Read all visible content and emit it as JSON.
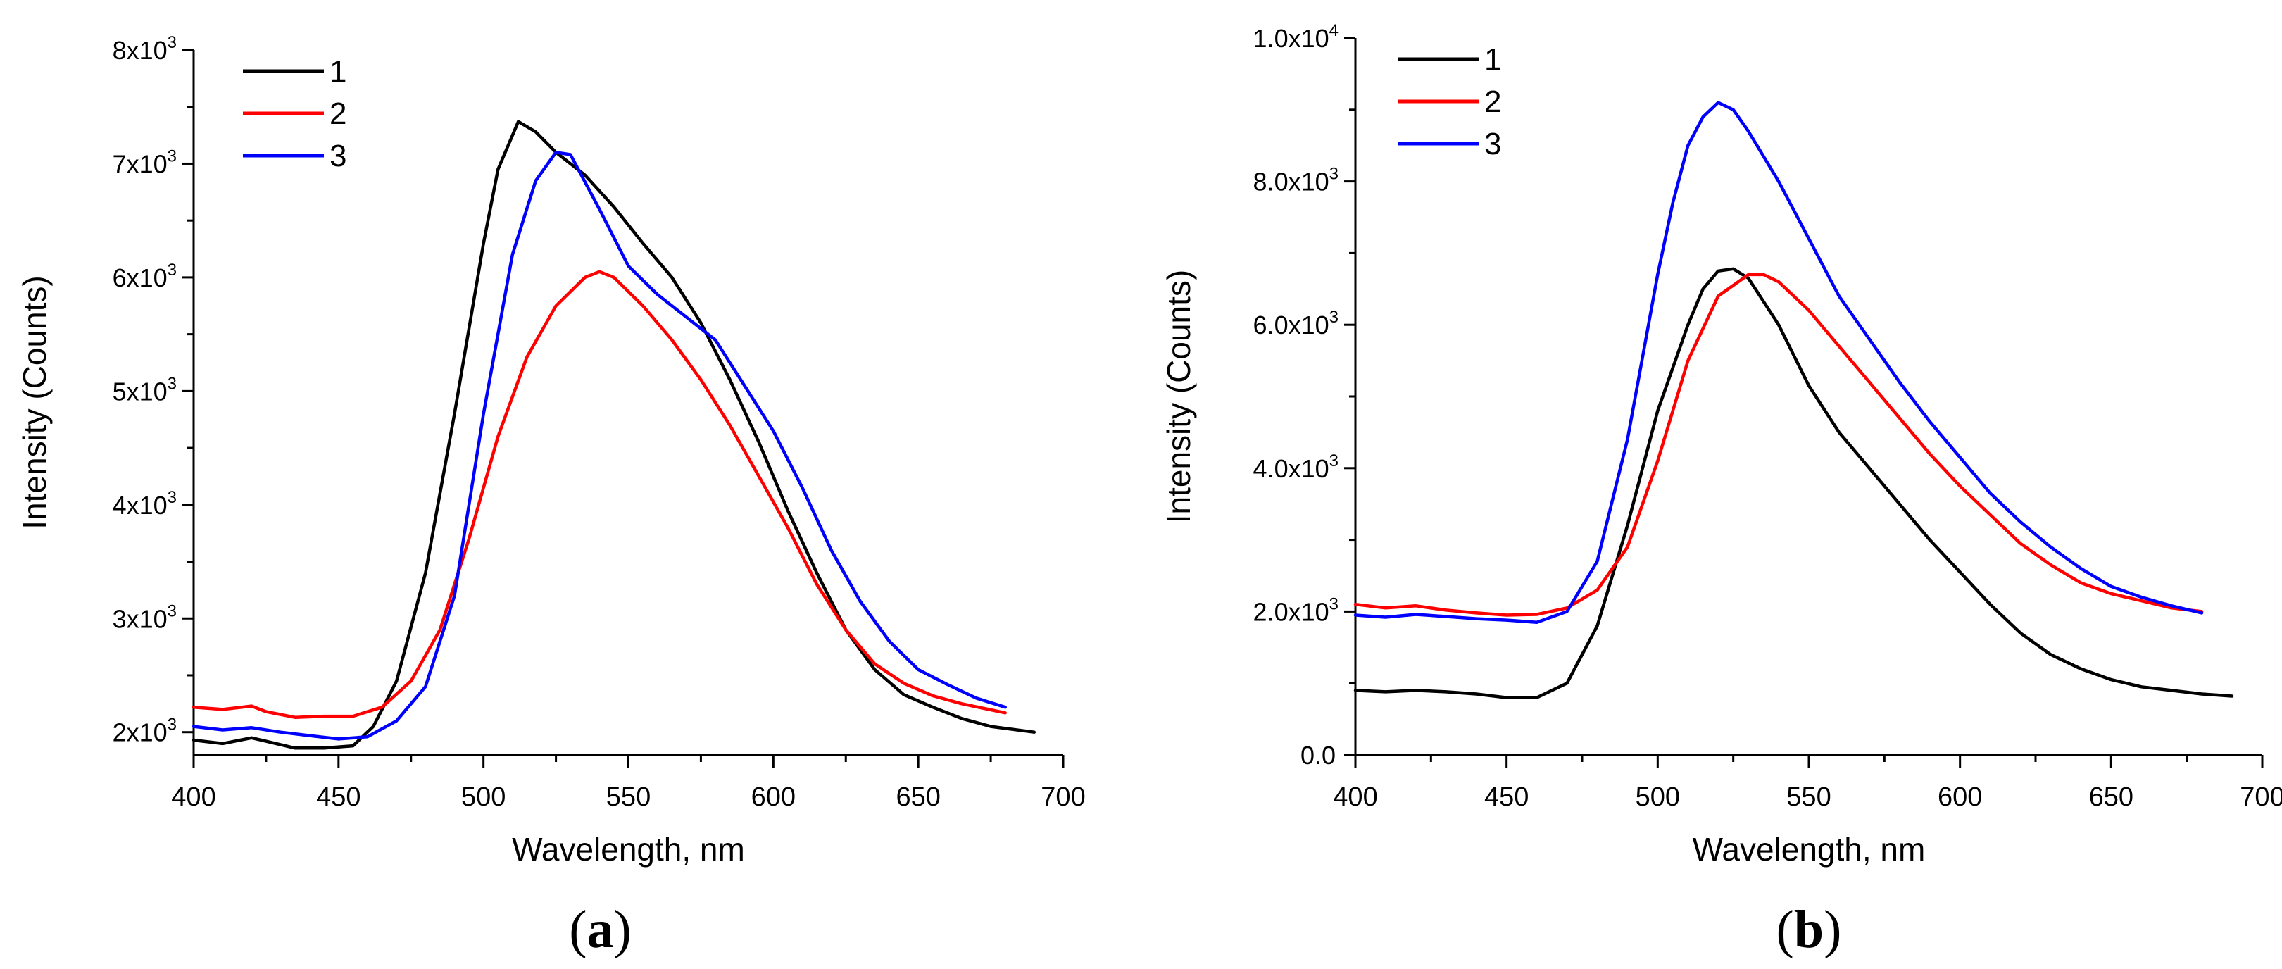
{
  "chart_data": [
    {
      "type": "line",
      "panel_label": "a",
      "xlabel": "Wavelength, nm",
      "ylabel": "Intensity (Counts)",
      "xlim": [
        400,
        700
      ],
      "ylim": [
        1800,
        8000
      ],
      "x_ticks": [
        400,
        450,
        500,
        550,
        600,
        650,
        700
      ],
      "x_tick_labels": [
        "400",
        "450",
        "500",
        "550",
        "600",
        "650",
        "700"
      ],
      "y_ticks": [
        {
          "value": 2000,
          "mantissa": "2x10",
          "exponent": "3"
        },
        {
          "value": 3000,
          "mantissa": "3x10",
          "exponent": "3"
        },
        {
          "value": 4000,
          "mantissa": "4x10",
          "exponent": "3"
        },
        {
          "value": 5000,
          "mantissa": "5x10",
          "exponent": "3"
        },
        {
          "value": 6000,
          "mantissa": "6x10",
          "exponent": "3"
        },
        {
          "value": 7000,
          "mantissa": "7x10",
          "exponent": "3"
        },
        {
          "value": 8000,
          "mantissa": "8x10",
          "exponent": "3"
        }
      ],
      "legend_position": "top-left",
      "grid": false,
      "series": [
        {
          "name": "1",
          "color": "#000000",
          "x": [
            400,
            410,
            420,
            425,
            435,
            445,
            455,
            462,
            470,
            480,
            490,
            500,
            505,
            512,
            518,
            525,
            535,
            545,
            555,
            565,
            575,
            585,
            595,
            605,
            615,
            625,
            635,
            645,
            655,
            665,
            675,
            690
          ],
          "y": [
            1930,
            1900,
            1950,
            1920,
            1860,
            1860,
            1880,
            2050,
            2450,
            3400,
            4800,
            6300,
            6950,
            7370,
            7280,
            7100,
            6900,
            6620,
            6300,
            6000,
            5600,
            5100,
            4550,
            3950,
            3400,
            2900,
            2550,
            2330,
            2220,
            2120,
            2050,
            2000
          ]
        },
        {
          "name": "2",
          "color": "#ff0000",
          "x": [
            400,
            410,
            420,
            425,
            435,
            445,
            455,
            465,
            475,
            485,
            495,
            505,
            515,
            525,
            535,
            540,
            545,
            555,
            565,
            575,
            585,
            595,
            605,
            615,
            625,
            635,
            645,
            655,
            665,
            680
          ],
          "y": [
            2220,
            2200,
            2230,
            2180,
            2130,
            2140,
            2140,
            2220,
            2450,
            2900,
            3700,
            4600,
            5300,
            5750,
            6000,
            6050,
            6000,
            5750,
            5450,
            5100,
            4700,
            4250,
            3800,
            3300,
            2900,
            2600,
            2430,
            2320,
            2250,
            2170
          ]
        },
        {
          "name": "3",
          "color": "#0000ff",
          "x": [
            400,
            410,
            420,
            430,
            440,
            450,
            460,
            470,
            480,
            490,
            500,
            510,
            518,
            525,
            530,
            540,
            550,
            560,
            570,
            580,
            590,
            600,
            610,
            620,
            630,
            640,
            650,
            660,
            670,
            680
          ],
          "y": [
            2050,
            2020,
            2040,
            2000,
            1970,
            1940,
            1960,
            2100,
            2400,
            3200,
            4800,
            6200,
            6850,
            7100,
            7080,
            6600,
            6100,
            5850,
            5650,
            5450,
            5050,
            4650,
            4150,
            3600,
            3150,
            2800,
            2550,
            2420,
            2300,
            2220
          ]
        }
      ]
    },
    {
      "type": "line",
      "panel_label": "b",
      "xlabel": "Wavelength, nm",
      "ylabel": "Intensity (Counts)",
      "xlim": [
        400,
        700
      ],
      "ylim": [
        0,
        10000
      ],
      "x_ticks": [
        400,
        450,
        500,
        550,
        600,
        650,
        700
      ],
      "x_tick_labels": [
        "400",
        "450",
        "500",
        "550",
        "600",
        "650",
        "700"
      ],
      "y_ticks": [
        {
          "value": 0,
          "mantissa": "0.0",
          "exponent": ""
        },
        {
          "value": 2000,
          "mantissa": "2.0x10",
          "exponent": "3"
        },
        {
          "value": 4000,
          "mantissa": "4.0x10",
          "exponent": "3"
        },
        {
          "value": 6000,
          "mantissa": "6.0x10",
          "exponent": "3"
        },
        {
          "value": 8000,
          "mantissa": "8.0x10",
          "exponent": "3"
        },
        {
          "value": 10000,
          "mantissa": "1.0x10",
          "exponent": "4"
        }
      ],
      "legend_position": "top-left",
      "grid": false,
      "series": [
        {
          "name": "1",
          "color": "#000000",
          "x": [
            400,
            410,
            420,
            430,
            440,
            450,
            460,
            470,
            480,
            490,
            500,
            510,
            515,
            520,
            525,
            530,
            540,
            550,
            560,
            570,
            580,
            590,
            600,
            610,
            620,
            630,
            640,
            650,
            660,
            670,
            680,
            690
          ],
          "y": [
            900,
            880,
            900,
            880,
            850,
            800,
            800,
            1000,
            1800,
            3200,
            4800,
            6000,
            6500,
            6750,
            6780,
            6650,
            6000,
            5150,
            4500,
            4000,
            3500,
            3000,
            2550,
            2100,
            1700,
            1400,
            1200,
            1050,
            950,
            900,
            850,
            820
          ]
        },
        {
          "name": "2",
          "color": "#ff0000",
          "x": [
            400,
            410,
            420,
            430,
            440,
            450,
            460,
            470,
            480,
            490,
            500,
            510,
            520,
            530,
            535,
            540,
            550,
            560,
            570,
            580,
            590,
            600,
            610,
            620,
            630,
            640,
            650,
            660,
            670,
            680
          ],
          "y": [
            2100,
            2050,
            2080,
            2020,
            1980,
            1950,
            1960,
            2050,
            2300,
            2900,
            4100,
            5500,
            6400,
            6700,
            6700,
            6600,
            6200,
            5700,
            5200,
            4700,
            4200,
            3750,
            3350,
            2950,
            2650,
            2400,
            2250,
            2150,
            2050,
            2000
          ]
        },
        {
          "name": "3",
          "color": "#0000ff",
          "x": [
            400,
            410,
            420,
            430,
            440,
            450,
            460,
            470,
            480,
            490,
            500,
            505,
            510,
            515,
            520,
            525,
            530,
            540,
            550,
            560,
            570,
            580,
            590,
            600,
            610,
            620,
            630,
            640,
            650,
            660,
            670,
            680
          ],
          "y": [
            1950,
            1920,
            1960,
            1930,
            1900,
            1880,
            1850,
            2000,
            2700,
            4400,
            6700,
            7700,
            8500,
            8900,
            9100,
            9000,
            8700,
            8000,
            7200,
            6400,
            5800,
            5200,
            4650,
            4150,
            3650,
            3250,
            2900,
            2600,
            2350,
            2200,
            2080,
            1980
          ]
        }
      ]
    }
  ]
}
